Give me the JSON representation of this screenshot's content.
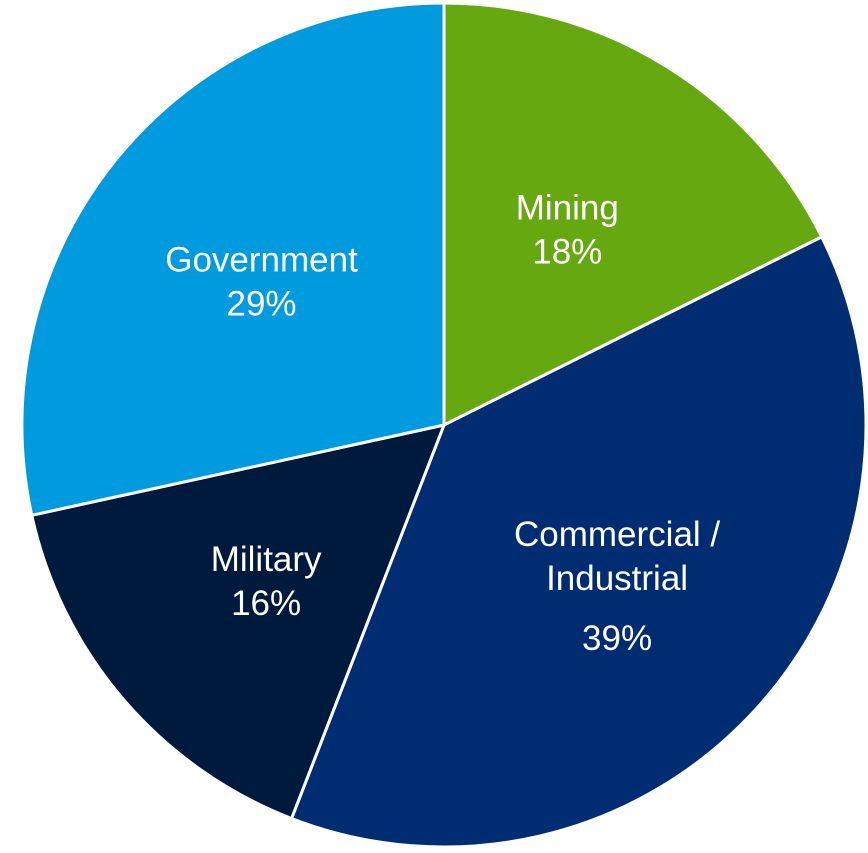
{
  "chart_data": {
    "type": "pie",
    "slices": [
      {
        "label_lines": [
          "Mining"
        ],
        "percent_label": "18%",
        "value": 18,
        "color": "#66A80F"
      },
      {
        "label_lines": [
          "Commercial /",
          "Industrial"
        ],
        "percent_label": "39%",
        "value": 39,
        "color": "#002D72"
      },
      {
        "label_lines": [
          "Military"
        ],
        "percent_label": "16%",
        "value": 16,
        "color": "#001A3D"
      },
      {
        "label_lines": [
          "Government"
        ],
        "percent_label": "29%",
        "value": 29,
        "color": "#009ADE"
      }
    ],
    "start_angle": "12 o'clock",
    "direction": "clockwise",
    "slice_border_color": "#FFFFFF",
    "label_color": "#FFFFFF",
    "legend": "none"
  }
}
